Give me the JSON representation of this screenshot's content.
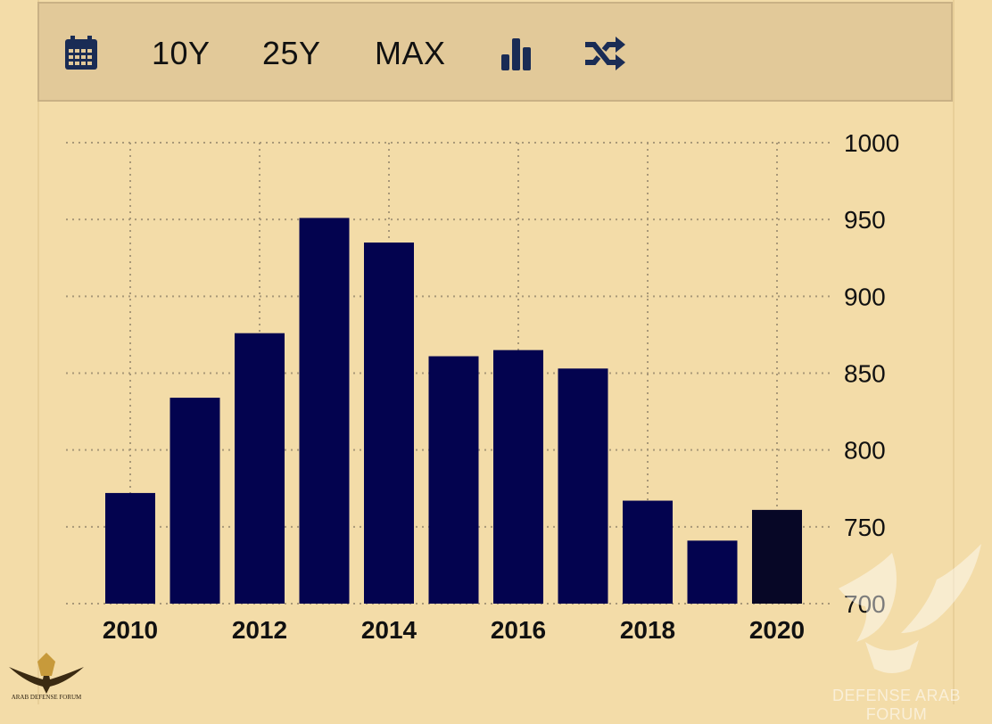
{
  "toolbar": {
    "calendar_icon": "calendar-icon",
    "range_10y": "10Y",
    "range_25y": "25Y",
    "range_max": "MAX",
    "bar_chart_icon": "bar-chart-icon",
    "shuffle_icon": "shuffle-icon"
  },
  "colors": {
    "background": "#f3dca8",
    "toolbar_bg": "#e2c999",
    "bar": "#03034f",
    "bar_highlight": "#070726",
    "grid": "#a89878"
  },
  "chart_data": {
    "type": "bar",
    "categories": [
      "2010",
      "2011",
      "2012",
      "2013",
      "2014",
      "2015",
      "2016",
      "2017",
      "2018",
      "2019",
      "2020"
    ],
    "values": [
      772,
      834,
      876,
      951,
      935,
      861,
      865,
      853,
      767,
      741,
      761
    ],
    "x_tick_labels": [
      "2010",
      "2012",
      "2014",
      "2016",
      "2018",
      "2020"
    ],
    "y_tick_labels": [
      "1000",
      "950",
      "900",
      "850",
      "800",
      "750",
      "700"
    ],
    "ylim": [
      700,
      1000
    ],
    "y_axis_side": "right",
    "grid": true,
    "grid_style": "dotted",
    "highlighted_category": "2020",
    "title": "",
    "xlabel": "",
    "ylabel": ""
  },
  "watermarks": {
    "left_text": "ARAB DEFENSE FORUM",
    "right_text": "DEFENSE ARAB FORUM"
  }
}
